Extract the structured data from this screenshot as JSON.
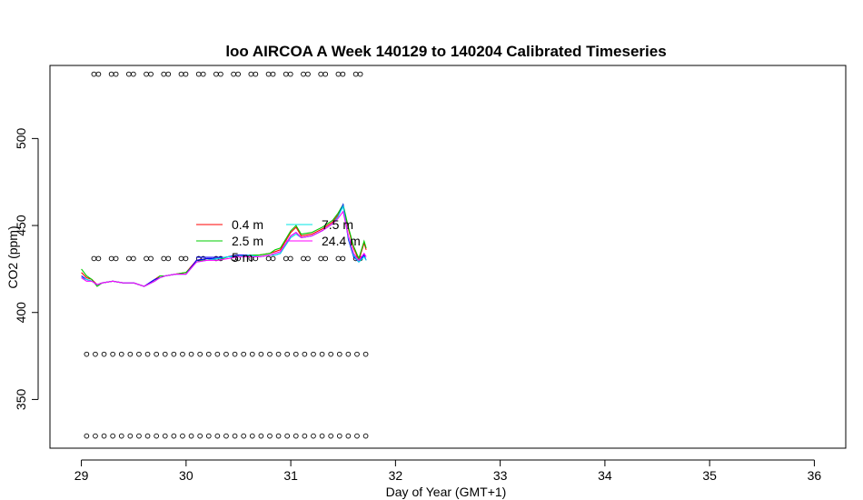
{
  "chart_data": {
    "type": "line",
    "title": "loo AIRCOA A  Week 140129 to 140204  Calibrated Timeseries",
    "xlabel": "Day of Year (GMT+1)",
    "ylabel": "CO2 (ppm)",
    "xlim": [
      28.7,
      36.3
    ],
    "ylim": [
      322,
      542
    ],
    "x_ticks": [
      29,
      30,
      31,
      32,
      33,
      34,
      35,
      36
    ],
    "y_ticks": [
      350,
      400,
      450,
      500
    ],
    "grid": false,
    "legend": {
      "position": "center-left",
      "entries": [
        {
          "label": "0.4 m",
          "color": "#ff0000"
        },
        {
          "label": "2.5 m",
          "color": "#00cc00"
        },
        {
          "label": "5 m",
          "color": "#0000ff"
        },
        {
          "label": "7.5 m",
          "color": "#00e5e5"
        },
        {
          "label": "24.4 m",
          "color": "#ff00ff"
        }
      ]
    },
    "series": [
      {
        "name": "0.4 m",
        "color": "#ff0000",
        "x": [
          29.0,
          29.05,
          29.1,
          29.15,
          29.2,
          29.3,
          29.4,
          29.5,
          29.6,
          29.7,
          29.75,
          29.8,
          29.9,
          30.0,
          30.1,
          30.2,
          30.3,
          30.4,
          30.5,
          30.6,
          30.7,
          30.8,
          30.85,
          30.9,
          31.0,
          31.05,
          31.1,
          31.2,
          31.3,
          31.4,
          31.45,
          31.5,
          31.55,
          31.6,
          31.65,
          31.7,
          31.72
        ],
        "y": [
          423,
          420,
          419,
          416,
          417,
          418,
          417,
          417,
          415,
          419,
          421,
          421,
          422,
          423,
          430,
          431,
          431,
          432,
          433,
          433,
          433,
          434,
          435,
          436,
          446,
          449,
          444,
          445,
          448,
          452,
          456,
          461,
          448,
          437,
          430,
          440,
          436
        ]
      },
      {
        "name": "2.5 m",
        "color": "#00cc00",
        "x": [
          29.0,
          29.05,
          29.1,
          29.15,
          29.2,
          29.3,
          29.4,
          29.5,
          29.6,
          29.7,
          29.75,
          29.8,
          29.9,
          30.0,
          30.1,
          30.2,
          30.3,
          30.4,
          30.5,
          30.6,
          30.7,
          30.8,
          30.85,
          30.9,
          31.0,
          31.05,
          31.1,
          31.2,
          31.3,
          31.4,
          31.45,
          31.5,
          31.55,
          31.6,
          31.65,
          31.7,
          31.72
        ],
        "y": [
          425,
          421,
          419,
          415,
          417,
          418,
          417,
          417,
          415,
          418,
          421,
          421,
          422,
          423,
          429,
          431,
          430,
          432,
          433,
          433,
          433,
          434,
          436,
          437,
          447,
          450,
          445,
          446,
          449,
          453,
          457,
          462,
          449,
          438,
          431,
          441,
          437
        ]
      },
      {
        "name": "5 m",
        "color": "#0000ff",
        "x": [
          29.0,
          29.05,
          29.1,
          29.15,
          29.2,
          29.3,
          29.4,
          29.5,
          29.6,
          29.7,
          29.75,
          29.8,
          29.9,
          30.0,
          30.1,
          30.2,
          30.3,
          30.4,
          30.5,
          30.6,
          30.7,
          30.8,
          30.85,
          30.9,
          31.0,
          31.05,
          31.1,
          31.2,
          31.3,
          31.4,
          31.45,
          31.5,
          31.55,
          31.6,
          31.65,
          31.7,
          31.72
        ],
        "y": [
          421,
          419,
          418,
          416,
          417,
          418,
          417,
          417,
          415,
          419,
          420,
          421,
          422,
          422,
          430,
          431,
          431,
          432,
          433,
          433,
          432,
          433,
          433,
          434,
          444,
          446,
          443,
          444,
          447,
          451,
          455,
          462,
          442,
          432,
          429,
          433,
          430
        ]
      },
      {
        "name": "7.5 m",
        "color": "#00e5e5",
        "x": [
          29.0,
          29.05,
          29.1,
          29.15,
          29.2,
          29.3,
          29.4,
          29.5,
          29.6,
          29.7,
          29.75,
          29.8,
          29.9,
          30.0,
          30.1,
          30.2,
          30.3,
          30.4,
          30.5,
          30.6,
          30.7,
          30.8,
          30.85,
          30.9,
          31.0,
          31.05,
          31.1,
          31.2,
          31.3,
          31.4,
          31.45,
          31.5,
          31.55,
          31.6,
          31.65,
          31.7,
          31.72
        ],
        "y": [
          420,
          419,
          418,
          416,
          417,
          418,
          417,
          417,
          415,
          418,
          420,
          421,
          422,
          422,
          429,
          430,
          431,
          432,
          432,
          433,
          432,
          433,
          433,
          434,
          443,
          445,
          443,
          444,
          447,
          451,
          455,
          461,
          443,
          433,
          429,
          432,
          430
        ]
      },
      {
        "name": "24.4 m",
        "color": "#ff00ff",
        "x": [
          29.0,
          29.05,
          29.1,
          29.15,
          29.2,
          29.3,
          29.4,
          29.5,
          29.6,
          29.7,
          29.75,
          29.8,
          29.9,
          30.0,
          30.1,
          30.2,
          30.3,
          30.4,
          30.5,
          30.6,
          30.7,
          30.8,
          30.85,
          30.9,
          31.0,
          31.05,
          31.1,
          31.2,
          31.3,
          31.4,
          31.45,
          31.5,
          31.55,
          31.6,
          31.65,
          31.7,
          31.72
        ],
        "y": [
          420,
          418,
          418,
          416,
          417,
          418,
          417,
          417,
          415,
          418,
          420,
          421,
          422,
          422,
          429,
          430,
          430,
          431,
          432,
          432,
          432,
          433,
          434,
          435,
          444,
          446,
          443,
          444,
          447,
          451,
          454,
          458,
          444,
          434,
          430,
          434,
          432
        ]
      }
    ],
    "marker_rows": [
      {
        "y": 537,
        "x_start": 29.12,
        "x_end": 31.68,
        "step": 0.1667,
        "doubled": true
      },
      {
        "y": 431,
        "x_start": 29.12,
        "x_end": 31.68,
        "step": 0.1667,
        "doubled": true
      },
      {
        "y": 376,
        "x_start": 29.05,
        "x_end": 31.75,
        "step": 0.0833,
        "doubled": false
      },
      {
        "y": 329,
        "x_start": 29.05,
        "x_end": 31.75,
        "step": 0.0833,
        "doubled": false
      }
    ]
  }
}
